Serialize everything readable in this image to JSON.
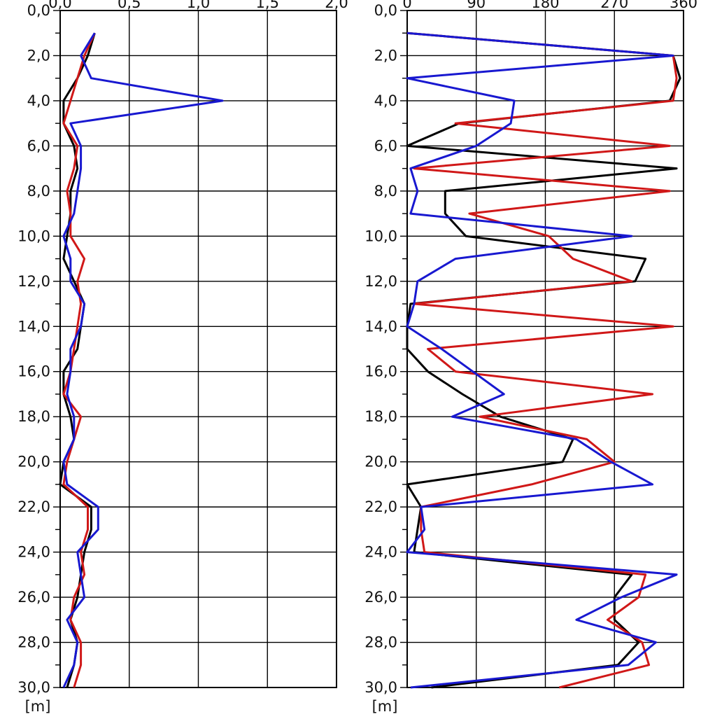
{
  "chart_data": [
    {
      "type": "line",
      "title": "",
      "xlabel": "",
      "ylabel": "[m]",
      "ylim": [
        0,
        30
      ],
      "y_inverted": true,
      "xlim": [
        0,
        4
      ],
      "x_tick_values": [
        0,
        1,
        2,
        3,
        4
      ],
      "x_tick_labels": [
        "0,0",
        "0,5",
        "1,0",
        "1,5",
        "2,0"
      ],
      "y_ticks": [
        0,
        2,
        4,
        6,
        8,
        10,
        12,
        14,
        16,
        18,
        20,
        22,
        24,
        26,
        28,
        30
      ],
      "y_tick_labels": [
        "0,0",
        "2,0",
        "4,0",
        "6,0",
        "8,0",
        "10,0",
        "12,0",
        "14,0",
        "16,0",
        "18,0",
        "20,0",
        "22,0",
        "24,0",
        "26,0",
        "28,0",
        "30,0"
      ],
      "grid": true,
      "legend": "none",
      "series": [
        {
          "color": "#000000",
          "points": [
            [
              0.5,
              1
            ],
            [
              0.4,
              2
            ],
            [
              0.25,
              3
            ],
            [
              0.05,
              4
            ],
            [
              0.05,
              5
            ],
            [
              0.2,
              6
            ],
            [
              0.25,
              7
            ],
            [
              0.15,
              8
            ],
            [
              0.15,
              9
            ],
            [
              0.1,
              10
            ],
            [
              0.05,
              11
            ],
            [
              0.2,
              12
            ],
            [
              0.35,
              13
            ],
            [
              0.3,
              14
            ],
            [
              0.25,
              15
            ],
            [
              0.05,
              16
            ],
            [
              0.05,
              17
            ],
            [
              0.15,
              18
            ],
            [
              0.2,
              19
            ],
            [
              0.05,
              20
            ],
            [
              0.0,
              21
            ],
            [
              0.45,
              22
            ],
            [
              0.45,
              23
            ],
            [
              0.35,
              24
            ],
            [
              0.3,
              25
            ],
            [
              0.25,
              26
            ],
            [
              0.15,
              27
            ],
            [
              0.25,
              28
            ],
            [
              0.2,
              29
            ],
            [
              0.1,
              30
            ]
          ]
        },
        {
          "color": "#d01818",
          "points": [
            [
              0.5,
              1
            ],
            [
              0.35,
              2
            ],
            [
              0.25,
              3
            ],
            [
              0.15,
              4
            ],
            [
              0.05,
              5
            ],
            [
              0.25,
              6
            ],
            [
              0.2,
              7
            ],
            [
              0.1,
              8
            ],
            [
              0.15,
              9
            ],
            [
              0.15,
              10
            ],
            [
              0.35,
              11
            ],
            [
              0.25,
              12
            ],
            [
              0.3,
              13
            ],
            [
              0.25,
              14
            ],
            [
              0.2,
              15
            ],
            [
              0.15,
              16
            ],
            [
              0.05,
              17
            ],
            [
              0.3,
              18
            ],
            [
              0.2,
              19
            ],
            [
              0.1,
              20
            ],
            [
              0.05,
              21
            ],
            [
              0.4,
              22
            ],
            [
              0.4,
              23
            ],
            [
              0.3,
              24
            ],
            [
              0.35,
              25
            ],
            [
              0.2,
              26
            ],
            [
              0.15,
              27
            ],
            [
              0.3,
              28
            ],
            [
              0.3,
              29
            ],
            [
              0.2,
              30
            ]
          ]
        },
        {
          "color": "#1818d0",
          "points": [
            [
              0.5,
              1
            ],
            [
              0.3,
              2
            ],
            [
              0.45,
              3
            ],
            [
              2.35,
              4
            ],
            [
              0.15,
              5
            ],
            [
              0.3,
              6
            ],
            [
              0.3,
              7
            ],
            [
              0.25,
              8
            ],
            [
              0.2,
              9
            ],
            [
              0.05,
              10
            ],
            [
              0.15,
              11
            ],
            [
              0.15,
              12
            ],
            [
              0.35,
              13
            ],
            [
              0.3,
              14
            ],
            [
              0.15,
              15
            ],
            [
              0.15,
              16
            ],
            [
              0.1,
              17
            ],
            [
              0.2,
              18
            ],
            [
              0.2,
              19
            ],
            [
              0.05,
              20
            ],
            [
              0.1,
              21
            ],
            [
              0.55,
              22
            ],
            [
              0.55,
              23
            ],
            [
              0.25,
              24
            ],
            [
              0.3,
              25
            ],
            [
              0.35,
              26
            ],
            [
              0.1,
              27
            ],
            [
              0.25,
              28
            ],
            [
              0.2,
              29
            ],
            [
              0.05,
              30
            ]
          ]
        }
      ]
    },
    {
      "type": "line",
      "title": "",
      "xlabel": "",
      "ylabel": "[m]",
      "ylim": [
        0,
        30
      ],
      "y_inverted": true,
      "xlim": [
        0,
        4
      ],
      "x_tick_values": [
        0,
        1,
        2,
        3,
        4
      ],
      "x_tick_labels": [
        "0",
        "90",
        "180",
        "270",
        "360"
      ],
      "y_ticks": [
        0,
        2,
        4,
        6,
        8,
        10,
        12,
        14,
        16,
        18,
        20,
        22,
        24,
        26,
        28,
        30
      ],
      "y_tick_labels": [
        "0,0",
        "2,0",
        "4,0",
        "6,0",
        "8,0",
        "10,0",
        "12,0",
        "14,0",
        "16,0",
        "18,0",
        "20,0",
        "22,0",
        "24,0",
        "26,0",
        "28,0",
        "30,0"
      ],
      "grid": true,
      "legend": "none",
      "series": [
        {
          "color": "#000000",
          "points": [
            [
              0.0,
              1
            ],
            [
              3.85,
              2
            ],
            [
              3.95,
              3
            ],
            [
              3.8,
              4
            ],
            [
              0.75,
              5
            ],
            [
              0.0,
              6
            ],
            [
              3.9,
              7
            ],
            [
              0.55,
              8
            ],
            [
              0.55,
              9
            ],
            [
              0.85,
              10
            ],
            [
              3.45,
              11
            ],
            [
              3.3,
              12
            ],
            [
              0.05,
              13
            ],
            [
              0.0,
              14
            ],
            [
              0.0,
              15
            ],
            [
              0.3,
              16
            ],
            [
              0.8,
              17
            ],
            [
              1.35,
              18
            ],
            [
              2.4,
              19
            ],
            [
              2.25,
              20
            ],
            [
              0.0,
              21
            ],
            [
              0.2,
              22
            ],
            [
              0.15,
              23
            ],
            [
              0.1,
              24
            ],
            [
              3.25,
              25
            ],
            [
              3.0,
              26
            ],
            [
              3.0,
              27
            ],
            [
              3.35,
              28
            ],
            [
              3.05,
              29
            ],
            [
              0.35,
              30
            ]
          ]
        },
        {
          "color": "#d01818",
          "points": [
            [
              0.0,
              1
            ],
            [
              3.85,
              2
            ],
            [
              3.9,
              3
            ],
            [
              3.85,
              4
            ],
            [
              0.7,
              5
            ],
            [
              3.8,
              6
            ],
            [
              0.1,
              7
            ],
            [
              3.8,
              8
            ],
            [
              0.9,
              9
            ],
            [
              2.05,
              10
            ],
            [
              2.4,
              11
            ],
            [
              3.25,
              12
            ],
            [
              0.1,
              13
            ],
            [
              3.85,
              14
            ],
            [
              0.3,
              15
            ],
            [
              0.7,
              16
            ],
            [
              3.55,
              17
            ],
            [
              1.05,
              18
            ],
            [
              2.6,
              19
            ],
            [
              3.0,
              20
            ],
            [
              1.8,
              21
            ],
            [
              0.2,
              22
            ],
            [
              0.2,
              23
            ],
            [
              0.25,
              24
            ],
            [
              3.45,
              25
            ],
            [
              3.35,
              26
            ],
            [
              2.9,
              27
            ],
            [
              3.4,
              28
            ],
            [
              3.5,
              29
            ],
            [
              2.2,
              30
            ]
          ]
        },
        {
          "color": "#1818d0",
          "points": [
            [
              0.0,
              1
            ],
            [
              3.85,
              2
            ],
            [
              0.0,
              3
            ],
            [
              1.55,
              4
            ],
            [
              1.5,
              5
            ],
            [
              1.0,
              6
            ],
            [
              0.05,
              7
            ],
            [
              0.15,
              8
            ],
            [
              0.05,
              9
            ],
            [
              3.25,
              10
            ],
            [
              0.7,
              11
            ],
            [
              0.15,
              12
            ],
            [
              0.1,
              13
            ],
            [
              0.0,
              14
            ],
            [
              0.5,
              15
            ],
            [
              0.95,
              16
            ],
            [
              1.4,
              17
            ],
            [
              0.65,
              18
            ],
            [
              2.45,
              19
            ],
            [
              2.95,
              20
            ],
            [
              3.55,
              21
            ],
            [
              0.2,
              22
            ],
            [
              0.25,
              23
            ],
            [
              0.0,
              24
            ],
            [
              3.9,
              25
            ],
            [
              3.1,
              26
            ],
            [
              2.45,
              27
            ],
            [
              3.6,
              28
            ],
            [
              3.2,
              29
            ],
            [
              0.05,
              30
            ]
          ]
        }
      ]
    }
  ]
}
